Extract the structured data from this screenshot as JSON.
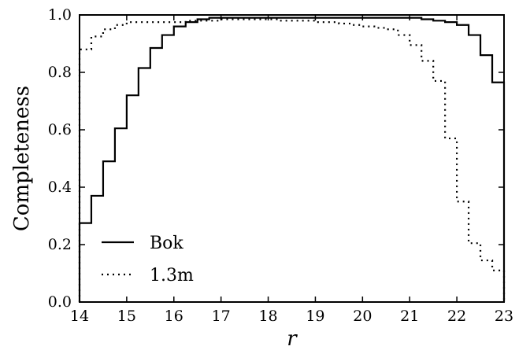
{
  "chart_data": {
    "type": "line",
    "title": "",
    "xlabel": "r",
    "ylabel": "Completeness",
    "xlim": [
      14,
      23
    ],
    "ylim": [
      0.0,
      1.0
    ],
    "xticks": [
      "14",
      "15",
      "16",
      "17",
      "18",
      "19",
      "20",
      "21",
      "22",
      "23"
    ],
    "yticks": [
      "0.0",
      "0.2",
      "0.4",
      "0.6",
      "0.8",
      "1.0"
    ],
    "grid": false,
    "legend_position": "lower-left",
    "step": true,
    "bin_width": 0.25,
    "series": [
      {
        "name": "Bok",
        "style": "solid",
        "x": [
          14.0,
          14.25,
          14.5,
          14.75,
          15.0,
          15.25,
          15.5,
          15.75,
          16.0,
          16.25,
          16.5,
          16.75,
          17.0,
          17.25,
          17.5,
          17.75,
          18.0,
          18.25,
          18.5,
          18.75,
          19.0,
          19.25,
          19.5,
          19.75,
          20.0,
          20.25,
          20.5,
          20.75,
          21.0,
          21.25,
          21.5,
          21.75,
          22.0,
          22.25,
          22.5,
          22.75
        ],
        "values": [
          0.275,
          0.37,
          0.49,
          0.605,
          0.72,
          0.815,
          0.885,
          0.93,
          0.96,
          0.975,
          0.985,
          0.99,
          0.99,
          0.99,
          0.99,
          0.99,
          0.99,
          0.99,
          0.99,
          0.99,
          0.99,
          0.99,
          0.99,
          0.99,
          0.99,
          0.99,
          0.99,
          0.99,
          0.99,
          0.985,
          0.98,
          0.975,
          0.965,
          0.93,
          0.86,
          0.765
        ]
      },
      {
        "name": "1.3m",
        "style": "dotted",
        "x": [
          14.0,
          14.25,
          14.5,
          14.75,
          15.0,
          15.25,
          15.5,
          15.75,
          16.0,
          16.25,
          16.5,
          16.75,
          17.0,
          17.25,
          17.5,
          17.75,
          18.0,
          18.25,
          18.5,
          18.75,
          19.0,
          19.25,
          19.5,
          19.75,
          20.0,
          20.25,
          20.5,
          20.75,
          21.0,
          21.25,
          21.5,
          21.75,
          22.0,
          22.25,
          22.5,
          22.75
        ],
        "values": [
          0.88,
          0.925,
          0.95,
          0.965,
          0.975,
          0.975,
          0.975,
          0.975,
          0.975,
          0.98,
          0.98,
          0.98,
          0.985,
          0.985,
          0.985,
          0.985,
          0.985,
          0.98,
          0.98,
          0.98,
          0.975,
          0.975,
          0.97,
          0.965,
          0.96,
          0.955,
          0.95,
          0.93,
          0.895,
          0.84,
          0.77,
          0.57,
          0.35,
          0.205,
          0.145,
          0.11
        ]
      }
    ]
  }
}
